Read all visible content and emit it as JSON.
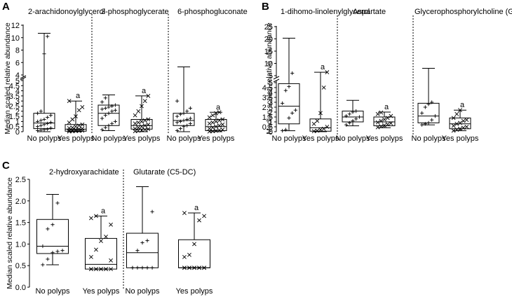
{
  "chart_data": [
    {
      "panel_label": "A",
      "type": "box",
      "ylabel": "Median scaled relative abundance",
      "axis_break": {
        "lower": [
          0,
          5
        ],
        "upper": [
          4,
          12
        ]
      },
      "lower_ticks": [
        "0",
        "0.5",
        "1",
        "1.5",
        "2",
        "2.5",
        "3",
        "3.5",
        "4",
        "4.5",
        "5"
      ],
      "upper_ticks": [
        "4",
        "6",
        "8",
        "10",
        "12"
      ],
      "subplots": [
        {
          "title": "2-arachidonoylglycerol",
          "groups": [
            {
              "label": "No polyps",
              "min": 0,
              "q1": 0.3,
              "median": 0.85,
              "q3": 1.8,
              "max": 10.7,
              "marker": "+",
              "annotation": "",
              "points": [
                0.1,
                0.15,
                0.2,
                0.25,
                0.35,
                0.5,
                0.6,
                0.7,
                0.8,
                0.9,
                1.0,
                1.1,
                1.2,
                1.4,
                1.6,
                1.8,
                2.0,
                7.4,
                10.2
              ]
            },
            {
              "label": "Yes polyps",
              "min": 0,
              "q1": 0.05,
              "median": 0.25,
              "q3": 0.7,
              "max": 3.0,
              "marker": "x",
              "annotation": "a",
              "points": [
                0.02,
                0.04,
                0.06,
                0.08,
                0.1,
                0.12,
                0.15,
                0.2,
                0.25,
                0.3,
                0.35,
                0.4,
                0.5,
                0.6,
                0.7,
                0.9,
                1.2,
                1.5,
                2.1,
                2.4,
                3.0
              ]
            }
          ]
        },
        {
          "title": "3-phosphoglycerate",
          "groups": [
            {
              "label": "No polyps",
              "min": 0.1,
              "q1": 0.6,
              "median": 1.8,
              "q3": 2.6,
              "max": 3.6,
              "marker": "+",
              "annotation": "",
              "points": [
                0.2,
                0.4,
                0.6,
                0.8,
                1.0,
                1.3,
                1.6,
                1.8,
                2.0,
                2.1,
                2.2,
                2.3,
                2.4,
                2.5,
                2.6,
                2.9,
                3.3
              ]
            },
            {
              "label": "Yes polyps",
              "min": 0,
              "q1": 0.25,
              "median": 0.6,
              "q3": 1.2,
              "max": 3.5,
              "marker": "x",
              "annotation": "a",
              "points": [
                0.05,
                0.1,
                0.15,
                0.2,
                0.25,
                0.3,
                0.4,
                0.5,
                0.6,
                0.7,
                0.8,
                0.9,
                1.0,
                1.1,
                1.2,
                1.6,
                2.0,
                2.5,
                3.0,
                3.5
              ]
            }
          ]
        },
        {
          "title": "6-phosphogluconate",
          "groups": [
            {
              "label": "No polyps",
              "min": 0,
              "q1": 0.6,
              "median": 1.1,
              "q3": 1.8,
              "max": 5.3,
              "marker": "+",
              "annotation": "",
              "points": [
                0.1,
                0.3,
                0.5,
                0.6,
                0.8,
                0.9,
                1.0,
                1.1,
                1.2,
                1.3,
                1.5,
                1.7,
                1.8,
                2.0,
                2.3,
                3.0
              ]
            },
            {
              "label": "Yes polyps",
              "min": 0,
              "q1": 0.1,
              "median": 0.5,
              "q3": 1.2,
              "max": 1.9,
              "marker": "x",
              "annotation": "a",
              "points": [
                0.02,
                0.05,
                0.1,
                0.15,
                0.2,
                0.3,
                0.4,
                0.5,
                0.6,
                0.7,
                0.8,
                0.9,
                1.0,
                1.1,
                1.2,
                1.4,
                1.6,
                1.8,
                1.9
              ]
            }
          ]
        }
      ]
    },
    {
      "panel_label": "B",
      "type": "box",
      "ylabel": "Median scaled relative abundance",
      "axis_break": {
        "lower": [
          0,
          5
        ],
        "upper": [
          5,
          25
        ]
      },
      "lower_ticks": [
        "0",
        "0.5",
        "1",
        "1.5",
        "2",
        "2.5",
        "3",
        "3.5",
        "4",
        "4.5",
        "5"
      ],
      "upper_ticks": [
        "5",
        "10",
        "15",
        "20",
        "25"
      ],
      "subplots": [
        {
          "title": "1-dihomo-linolenylglycerol",
          "groups": [
            {
              "label": "No polyps",
              "min": 0.1,
              "q1": 0.8,
              "median": 2.6,
              "q3": 4.9,
              "max": 20.3,
              "marker": "+",
              "annotation": "",
              "points": [
                0.1,
                0.2,
                1.4,
                1.9,
                2.2,
                2.9,
                4.2,
                4.6,
                6.0
              ]
            },
            {
              "label": "Yes polyps",
              "min": 0,
              "q1": 0.05,
              "median": 0.4,
              "q3": 1.3,
              "max": 6.4,
              "marker": "x",
              "annotation": "a",
              "points": [
                0.05,
                0.1,
                0.2,
                0.3,
                0.5,
                0.8,
                1.1,
                1.9,
                4.5,
                6.4
              ]
            }
          ]
        },
        {
          "title": "Aspartate",
          "groups": [
            {
              "label": "No polyps",
              "min": 0.6,
              "q1": 1.0,
              "median": 1.5,
              "q3": 2.1,
              "max": 3.2,
              "marker": "+",
              "annotation": "",
              "points": [
                0.7,
                0.9,
                1.1,
                1.3,
                1.5,
                1.6,
                1.8,
                2.0,
                2.1
              ]
            },
            {
              "label": "Yes polyps",
              "min": 0.4,
              "q1": 0.6,
              "median": 1.0,
              "q3": 1.5,
              "max": 2.0,
              "marker": "x",
              "annotation": "a",
              "points": [
                0.45,
                0.55,
                0.65,
                0.75,
                0.85,
                0.95,
                1.1,
                1.25,
                1.4,
                1.6,
                1.8,
                1.95
              ]
            }
          ]
        },
        {
          "title": "Glycerophosphorylcholine (GPC)",
          "groups": [
            {
              "label": "No polyps",
              "min": 0.7,
              "q1": 0.9,
              "median": 1.6,
              "q3": 2.9,
              "max": 8.0,
              "marker": "+",
              "annotation": "",
              "points": [
                0.7,
                0.8,
                0.9,
                1.2,
                1.6,
                1.9,
                2.5,
                2.8,
                3.0
              ]
            },
            {
              "label": "Yes polyps",
              "min": 0.1,
              "q1": 0.3,
              "median": 0.8,
              "q3": 1.4,
              "max": 2.2,
              "marker": "x",
              "annotation": "a",
              "points": [
                0.1,
                0.2,
                0.3,
                0.4,
                0.5,
                0.6,
                0.8,
                0.9,
                1.1,
                1.2,
                1.4,
                1.8,
                2.2
              ]
            }
          ]
        }
      ]
    },
    {
      "panel_label": "C",
      "type": "box",
      "ylabel": "Median scaled relative abundance",
      "ylim": [
        0,
        2.5
      ],
      "ticks": [
        "0.0",
        "0.5",
        "1.0",
        "1.5",
        "2.0",
        "2.5"
      ],
      "subplots": [
        {
          "title": "2-hydroxyarachidate",
          "groups": [
            {
              "label": "No polyps",
              "min": 0.52,
              "q1": 0.78,
              "median": 0.95,
              "q3": 1.57,
              "max": 2.15,
              "marker": "+",
              "annotation": "",
              "points": [
                0.52,
                0.65,
                0.8,
                0.83,
                0.85,
                0.95,
                1.35,
                1.45,
                1.95
              ]
            },
            {
              "label": "Yes polyps",
              "min": 0.42,
              "q1": 0.42,
              "median": 0.53,
              "q3": 1.13,
              "max": 1.65,
              "marker": "x",
              "annotation": "a",
              "points": [
                0.42,
                0.42,
                0.42,
                0.42,
                0.42,
                0.42,
                0.42,
                0.42,
                0.42,
                0.62,
                0.7,
                0.87,
                1.07,
                1.17,
                1.45,
                1.6,
                1.65
              ]
            }
          ]
        },
        {
          "title": "Glutarate (C5-DC)",
          "groups": [
            {
              "label": "No polyps",
              "min": 0.45,
              "q1": 0.45,
              "median": 0.8,
              "q3": 1.25,
              "max": 2.33,
              "marker": "+",
              "annotation": "",
              "points": [
                0.45,
                0.45,
                0.45,
                0.45,
                0.45,
                0.45,
                0.85,
                1.03,
                1.08,
                1.75
              ]
            },
            {
              "label": "Yes polyps",
              "min": 0.45,
              "q1": 0.45,
              "median": 0.45,
              "q3": 1.1,
              "max": 1.72,
              "marker": "x",
              "annotation": "a",
              "points": [
                0.45,
                0.45,
                0.45,
                0.45,
                0.45,
                0.45,
                0.45,
                0.45,
                0.45,
                0.45,
                0.7,
                0.75,
                1.0,
                1.55,
                1.65,
                1.72
              ]
            }
          ]
        }
      ]
    }
  ]
}
